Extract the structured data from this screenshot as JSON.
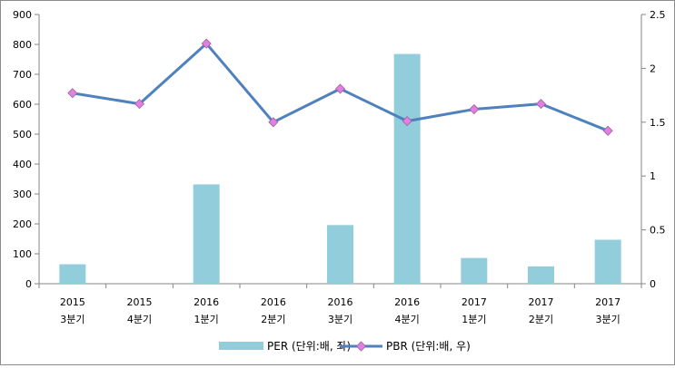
{
  "chart_data": {
    "type": "bar",
    "categories": [
      [
        "2015",
        "3분기"
      ],
      [
        "2015",
        "4분기"
      ],
      [
        "2016",
        "1분기"
      ],
      [
        "2016",
        "2분기"
      ],
      [
        "2016",
        "3분기"
      ],
      [
        "2016",
        "4분기"
      ],
      [
        "2017",
        "1분기"
      ],
      [
        "2017",
        "2분기"
      ],
      [
        "2017",
        "3분기"
      ]
    ],
    "series": [
      {
        "name": "PER (단위:배, 좌)",
        "type": "bar",
        "axis": "left",
        "color": "#92CDDC",
        "values": [
          65,
          0,
          332,
          0,
          196,
          768,
          86,
          58,
          147
        ]
      },
      {
        "name": "PBR (단위:배, 우)",
        "type": "line",
        "axis": "right",
        "color": "#4F81BD",
        "marker_color": "#E080E0",
        "values": [
          1.77,
          1.67,
          2.23,
          1.5,
          1.81,
          1.51,
          1.62,
          1.67,
          1.42
        ]
      }
    ],
    "y_left": {
      "min": 0,
      "max": 900,
      "step": 100,
      "tick_labels": [
        "0",
        "100",
        "200",
        "300",
        "400",
        "500",
        "600",
        "700",
        "800",
        "900"
      ]
    },
    "y_right": {
      "min": 0,
      "max": 2.5,
      "step": 0.5,
      "tick_labels": [
        "0",
        "0.5",
        "1",
        "1.5",
        "2",
        "2.5"
      ]
    },
    "grid": false,
    "legend_position": "bottom"
  }
}
